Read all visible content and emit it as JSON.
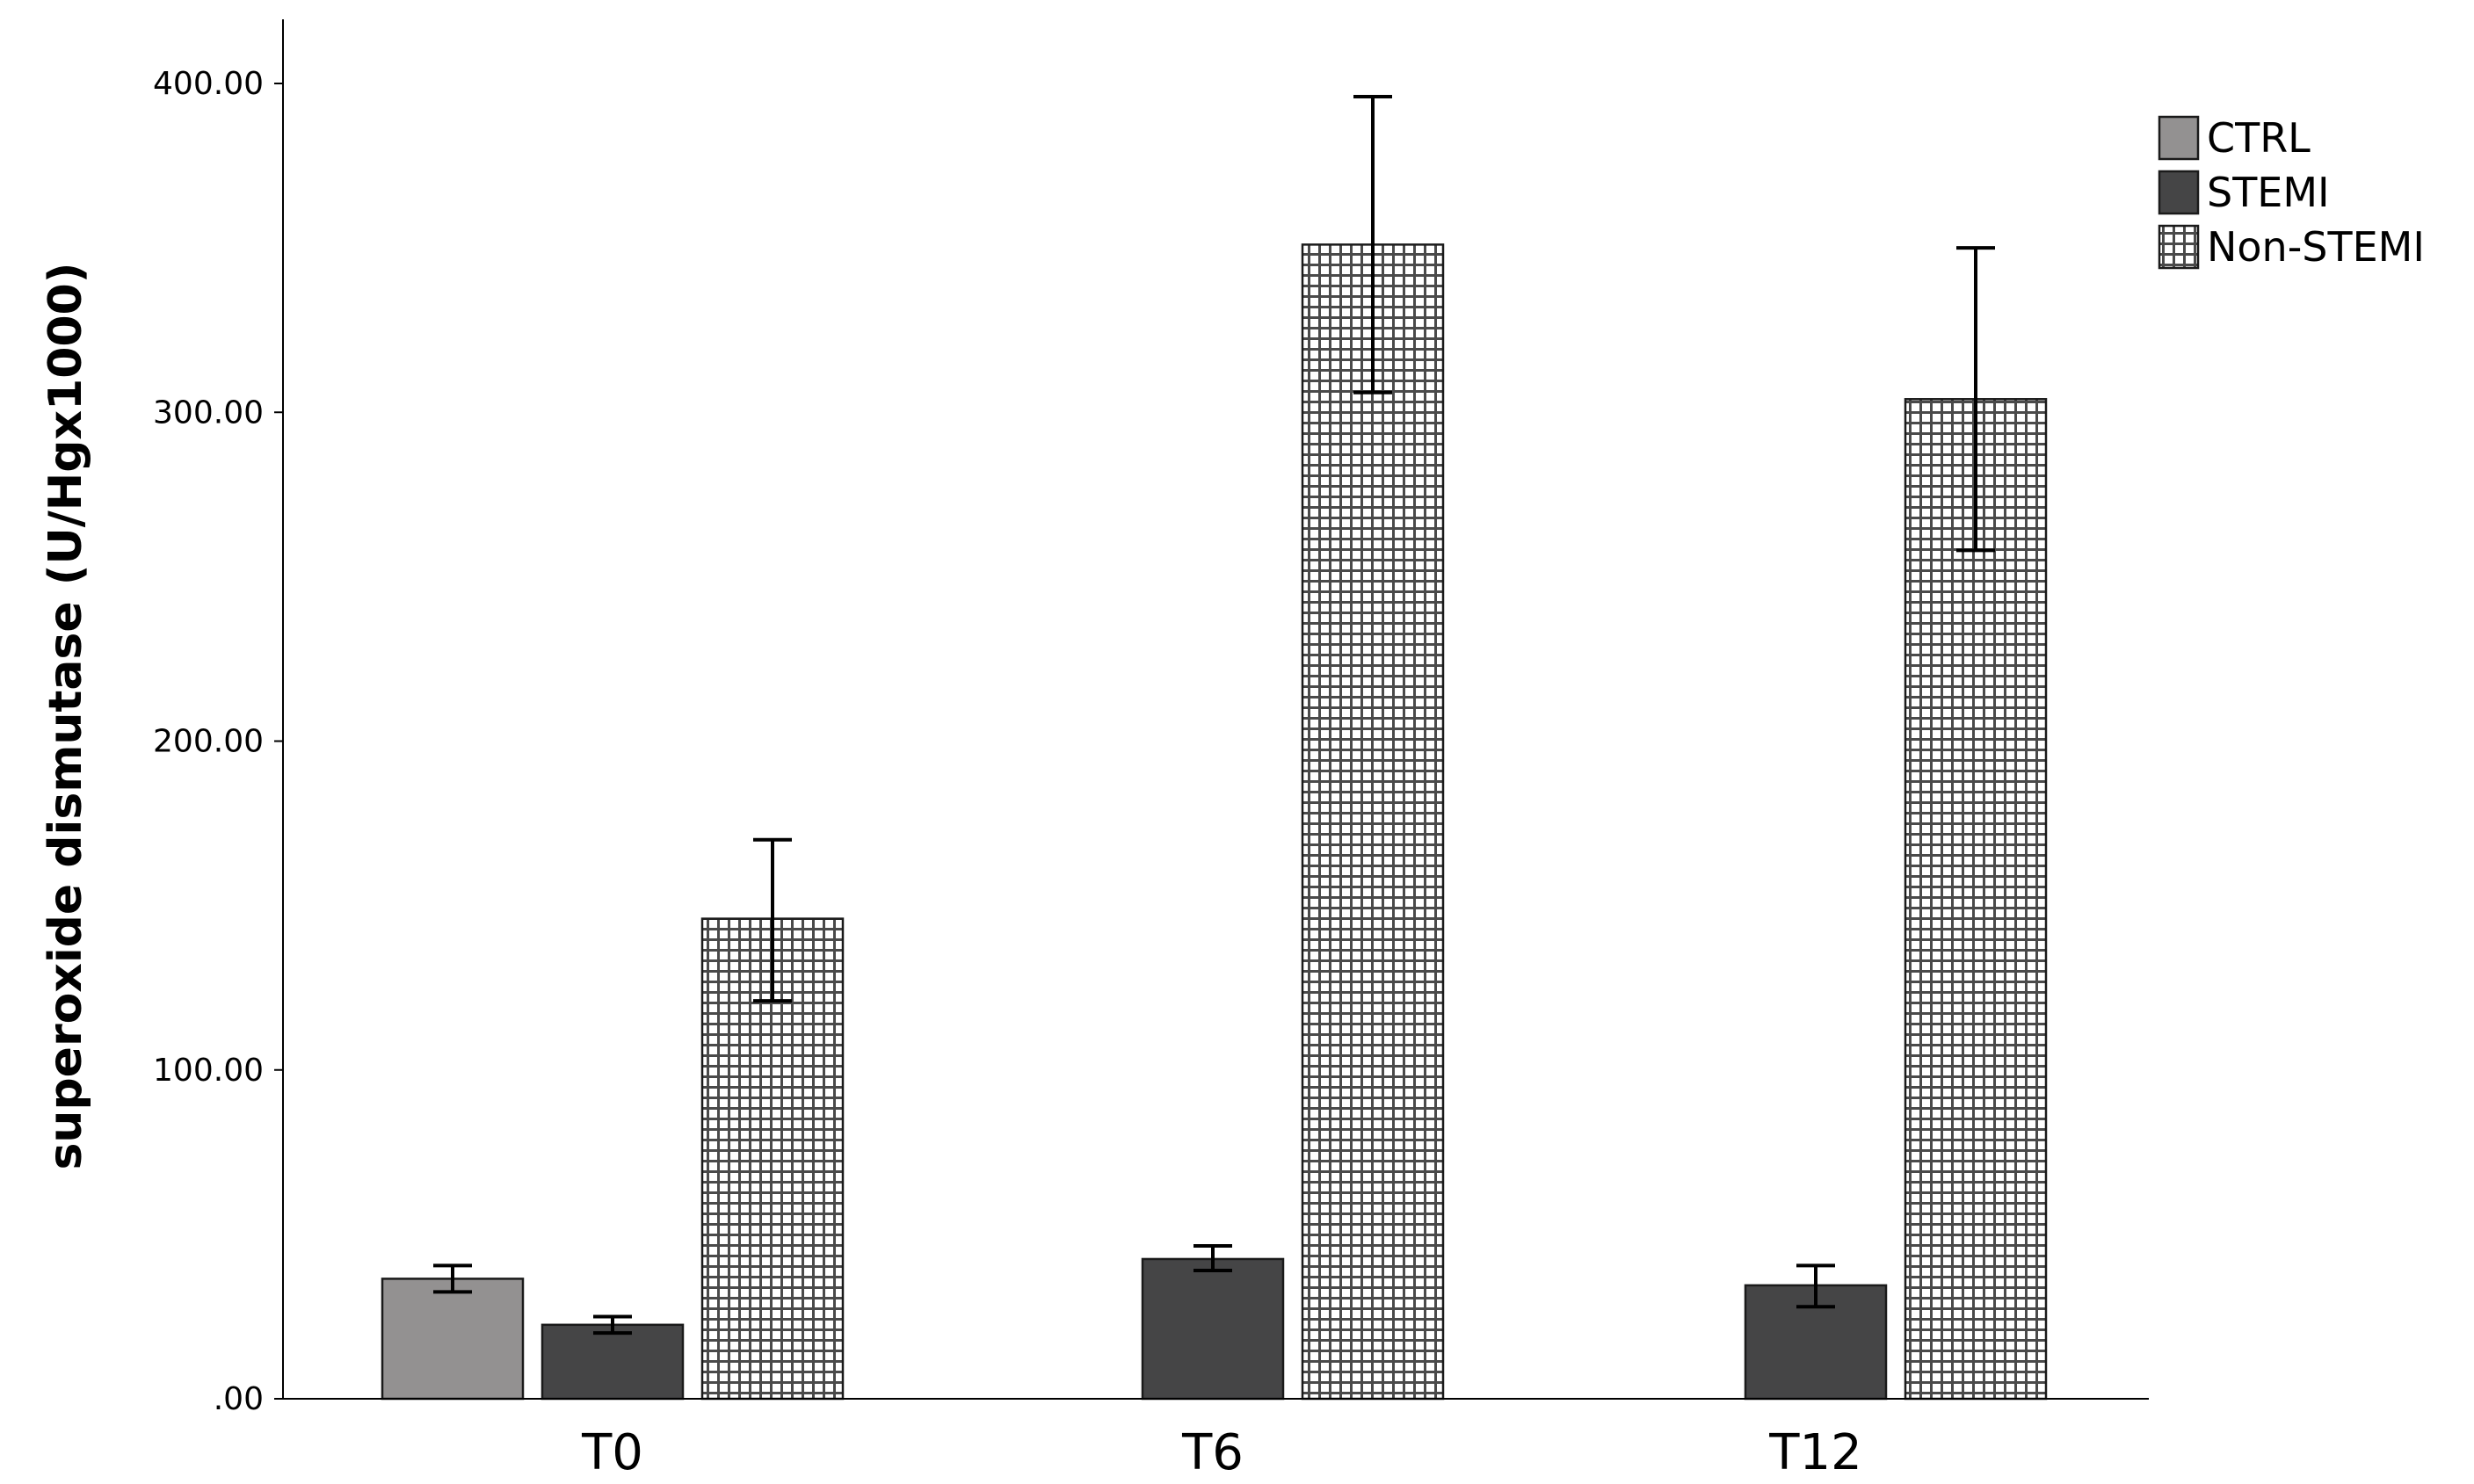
{
  "chart_data": {
    "type": "bar",
    "title": "",
    "xlabel": "",
    "ylabel": "superoxide dismutase (U/Hgx1000)",
    "ylim": [
      0,
      420
    ],
    "yticks": [
      0,
      100,
      200,
      300,
      400
    ],
    "ytick_labels": [
      ".00",
      "100.00",
      "200.00",
      "300.00",
      "400.00"
    ],
    "categories": [
      "T0",
      "T6",
      "T12"
    ],
    "grid": false,
    "legend_position": "top-right",
    "error_bars": true,
    "series": [
      {
        "name": "CTRL",
        "color": "#939191",
        "pattern": "solid",
        "values": [
          36.5,
          null,
          null
        ],
        "err_low": [
          32.5,
          null,
          null
        ],
        "err_high": [
          40.5,
          null,
          null
        ]
      },
      {
        "name": "STEMI",
        "color": "#454546",
        "pattern": "solid",
        "values": [
          22.5,
          42.5,
          34.5
        ],
        "err_low": [
          20.0,
          39.0,
          28.0
        ],
        "err_high": [
          25.0,
          46.5,
          40.5
        ]
      },
      {
        "name": "Non-STEMI",
        "color": "#555555",
        "pattern": "grid",
        "values": [
          146,
          351,
          304
        ],
        "err_low": [
          121,
          306,
          258
        ],
        "err_high": [
          170,
          396,
          350
        ]
      }
    ]
  }
}
